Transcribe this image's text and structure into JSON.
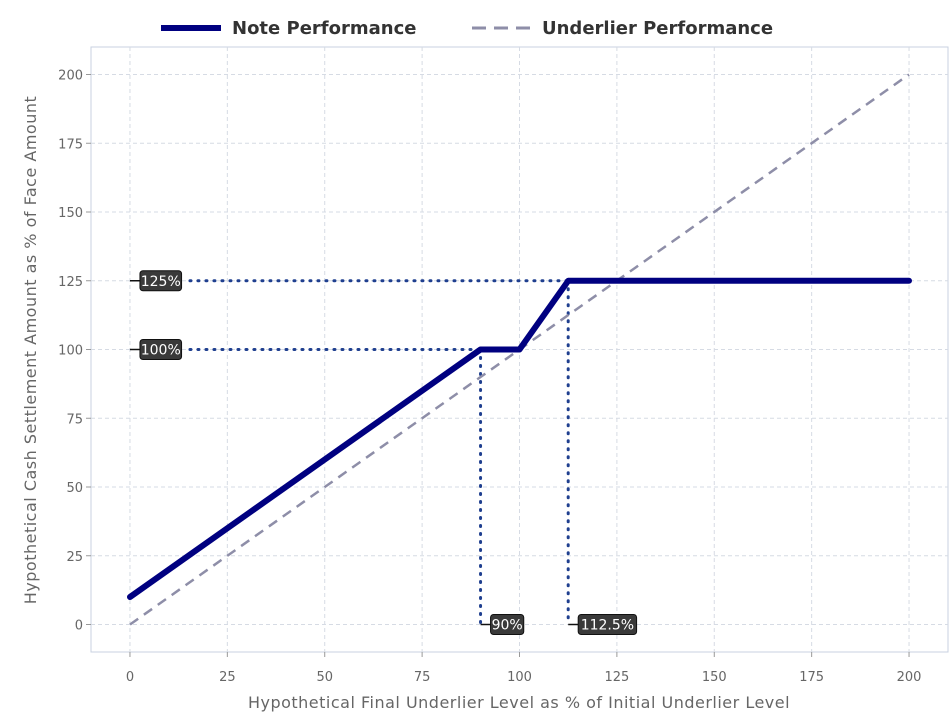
{
  "chart_data": {
    "type": "line",
    "legend_position": "top-center",
    "grid": true,
    "xlabel": "Hypothetical Final Underlier Level as % of Initial Underlier Level",
    "ylabel": "Hypothetical Cash Settlement Amount as % of Face Amount",
    "xlim": [
      -10,
      210
    ],
    "ylim": [
      -10,
      210
    ],
    "x_ticks": [
      0,
      25,
      50,
      75,
      100,
      125,
      150,
      175,
      200
    ],
    "y_ticks": [
      0,
      25,
      50,
      75,
      100,
      125,
      150,
      175,
      200
    ],
    "series": [
      {
        "name": "Note Performance",
        "color": "#000080",
        "style": "solid",
        "points": [
          [
            0,
            10
          ],
          [
            90,
            100
          ],
          [
            100,
            100
          ],
          [
            112.5,
            125
          ],
          [
            200,
            125
          ]
        ]
      },
      {
        "name": "Underlier Performance",
        "color": "#8e8ea8",
        "style": "dashed",
        "points": [
          [
            0,
            0
          ],
          [
            200,
            200
          ]
        ]
      }
    ],
    "reference_lines": {
      "color": "#1f3f8f",
      "horizontal": [
        {
          "y": 125,
          "x_end": 112.5
        },
        {
          "y": 100,
          "x_end": 90
        }
      ],
      "vertical": [
        {
          "x": 90,
          "y_end": 100
        },
        {
          "x": 112.5,
          "y_end": 125
        }
      ]
    },
    "annotations": [
      {
        "text": "125%",
        "axis": "y",
        "value": 125
      },
      {
        "text": "100%",
        "axis": "y",
        "value": 100
      },
      {
        "text": "90%",
        "axis": "x",
        "value": 90
      },
      {
        "text": "112.5%",
        "axis": "x",
        "value": 112.5
      }
    ]
  }
}
